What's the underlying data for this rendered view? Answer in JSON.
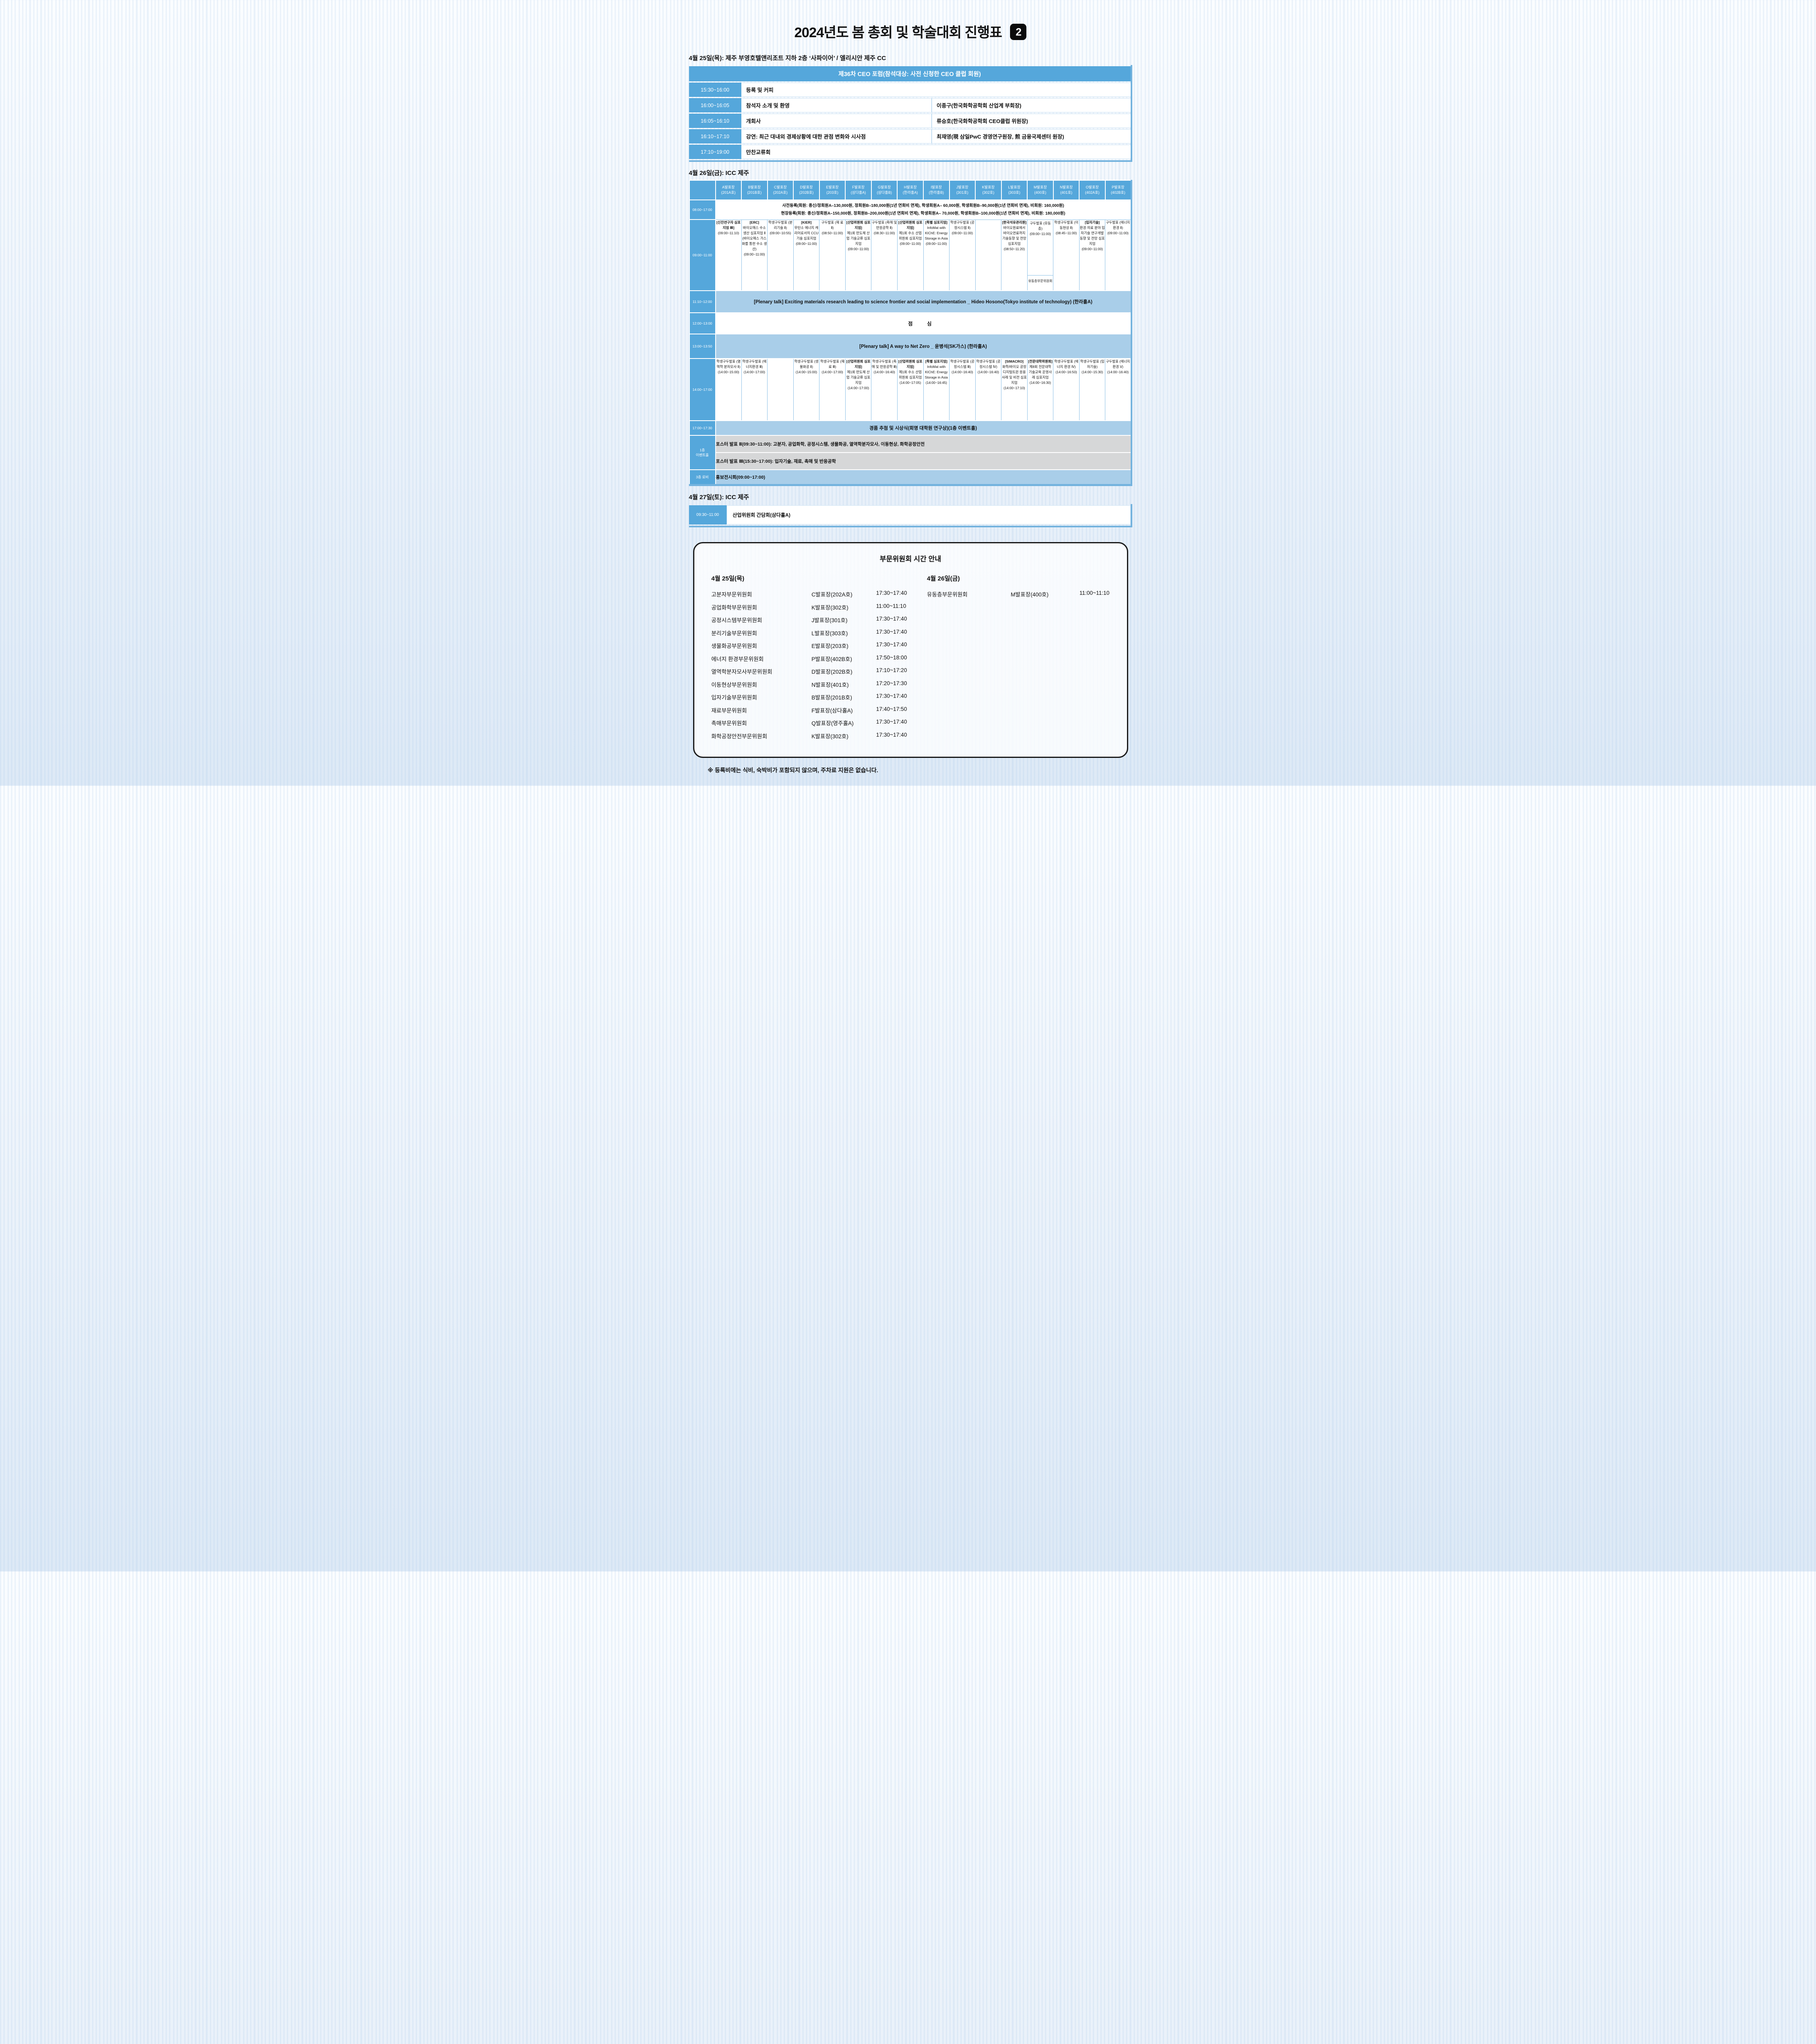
{
  "colors": {
    "accent_blue": "#55a7db",
    "light_blue": "#a9cee9",
    "poster_gray": "#d6d7d8",
    "badge_black": "#0b0b0b"
  },
  "title": {
    "text": "2024년도 봄 총회 및 학술대회 진행표",
    "badge": "2"
  },
  "day1": {
    "heading": "4월 25일(목): 제주 부영호텔앤리조트 지하 2층 ‘사파이어’ / 엘리시안 제주 CC",
    "forum": {
      "header": "제36차 CEO 포럼(참석대상: 사전 신청한 CEO 클럽 회원)",
      "rows": [
        {
          "time": "15:30~16:00",
          "event": "등록 및 커피",
          "speaker": ""
        },
        {
          "time": "16:00~16:05",
          "event": "참석자 소개 및 환영",
          "speaker": "이종구(한국화학공학회 산업계 부회장)"
        },
        {
          "time": "16:05~16:10",
          "event": "개회사",
          "speaker": "류승호(한국화학공학회 CEO클럽 위원장)"
        },
        {
          "time": "16:10~17:10",
          "event": "강연: 최근 대내외 경제상황에 대한 관점 변화와 시사점",
          "speaker": "최재영(現 삼일PwC 경영연구원장, 煎 금융국제센터 원장)"
        },
        {
          "time": "17:10~19:00",
          "event": "만찬교류회",
          "speaker": ""
        }
      ]
    }
  },
  "day2": {
    "heading": "4월 26일(금): ICC 제주",
    "room_letters": [
      "A",
      "B",
      "C",
      "D",
      "E",
      "F",
      "G",
      "H",
      "I",
      "J",
      "K",
      "L",
      "M",
      "N",
      "O",
      "P"
    ],
    "rooms": [
      {
        "name": "A발표장",
        "loc": "(201A호)"
      },
      {
        "name": "B발표장",
        "loc": "(201B호)"
      },
      {
        "name": "C발표장",
        "loc": "(202A호)"
      },
      {
        "name": "D발표장",
        "loc": "(202B호)"
      },
      {
        "name": "E발표장",
        "loc": "(203호)"
      },
      {
        "name": "F발표장",
        "loc": "(삼다홀A)"
      },
      {
        "name": "G발표장",
        "loc": "(삼다홀B)"
      },
      {
        "name": "H발표장",
        "loc": "(한라홀A)"
      },
      {
        "name": "I발표장",
        "loc": "(한라홀B)"
      },
      {
        "name": "J발표장",
        "loc": "(301호)"
      },
      {
        "name": "K발표장",
        "loc": "(302호)"
      },
      {
        "name": "L발표장",
        "loc": "(303호)"
      },
      {
        "name": "M발표장",
        "loc": "(400호)"
      },
      {
        "name": "N발표장",
        "loc": "(401호)"
      },
      {
        "name": "O발표장",
        "loc": "(402A호)"
      },
      {
        "name": "P발표장",
        "loc": "(402B호)"
      }
    ],
    "registration": {
      "time": "08:00~17:00",
      "line1": "사전등록(회원: 종신/정회원A–130,000원, 정회원B–180,000원(1년 연회비 면제), 학생회원A– 60,000원, 학생회원B–90,000원(1년 연회비 면제), 비회원: 160,000원)",
      "line2": "현장등록(회원: 종신/정회원A–150,000원, 정회원B–200,000원(1년 연회비 면제), 학생회원A– 70,000원, 학생회원B–100,000원(1년 연회비 면제), 비회원: 180,000원)"
    },
    "morning": {
      "time": "09:00~11:00",
      "cells": [
        {
          "head": "[신진연구자 심포지엄 Ⅲ]",
          "body": "",
          "time": "(09:00~11:10)"
        },
        {
          "head": "[ERC]",
          "body": "바이오매스 수소 생산 심포지엄 Ⅱ (바이오매스 가스화를 통한 수소 생산)",
          "time": "(09:00~11:00)"
        },
        {
          "head": "",
          "body": "학생구두발표 (분리기술 Ⅱ)",
          "time": "(09:00~10:55)"
        },
        {
          "head": "[KIER]",
          "body": "무탄소 에너지 캐리어로서의 CCU 기술 심포지엄",
          "time": "(09:00~11:00)"
        },
        {
          "head": "",
          "body": "구두발표 (재 료 Ⅱ)",
          "time": "(08:50~11:00)"
        },
        {
          "head": "[산업위원회 심포지엄]",
          "body": "제1회 반도체 산업 기술교류 심포지엄",
          "time": "(09:00~11:00)"
        },
        {
          "head": "",
          "body": "구두발표 (촉매 및 반응공학 Ⅱ)",
          "time": "(08:30~11:00)"
        },
        {
          "head": "[산업위원회 심포지엄]",
          "body": "제1회 수소 산업위원회 심포지엄",
          "time": "(09:00~11:00)"
        },
        {
          "head": "[특별 심포지엄]",
          "body": "InfoMat with KIChE: Energy Storage in Asia",
          "time": "(09:00~11:00)"
        },
        {
          "head": "",
          "body": "학생구두발표 (공정시스템 Ⅱ)",
          "time": "(09:00~11:00)"
        },
        null,
        {
          "head": "[한국석유관리원]",
          "body": "바이오원료에서 바이오연료까지 기술동향 및 전망 심포지엄",
          "time": "(08:50~11:20)"
        },
        {
          "head": "",
          "body": "구두발표 (유동층)",
          "time": "(09:00~11:00)",
          "sub": "유동층부문위원회"
        },
        {
          "head": "",
          "body": "학생구두발표 (이동현상 Ⅱ)",
          "time": "(08:45~11:00)"
        },
        {
          "head": "[입자기술]",
          "body": "환경·의료 분야 입자기술 연구개발 동향 및 전망 심포지엄",
          "time": "(09:00~11:00)"
        },
        {
          "head": "",
          "body": "구두발표 (에너지 환경 Ⅱ)",
          "time": "(09:00~11:00)"
        }
      ]
    },
    "plenary1": {
      "time": "11:10~12:00",
      "text": "[Plenary talk] Exciting materials research leading to science frontier and social implementation _ Hideo Hosono(Tokyo institute of technology) (한라홀A)"
    },
    "lunch": {
      "time": "12:00~13:00",
      "text": "점 심"
    },
    "plenary2": {
      "time": "13:00~13:50",
      "text": "[Plenary talk] A way to Net Zero _ 윤병석(SK가스) (한라홀A)"
    },
    "afternoon": {
      "time": "14:00~17:00",
      "cells": [
        {
          "head": "",
          "body": "학생구두발표 (열역학 분자모사 Ⅱ)",
          "time": "(14:00~15:00)"
        },
        {
          "head": "",
          "body": "학생구두발표 (에너지환경 Ⅲ)",
          "time": "(14:00~17:00)"
        },
        null,
        {
          "head": "",
          "body": "학생구두발표 (생물화공 Ⅱ)",
          "time": "(14:00~15:00)"
        },
        {
          "head": "",
          "body": "학생구두발표 (재 료 Ⅲ)",
          "time": "(14:00~17:00)"
        },
        {
          "head": "[산업위원회 심포지엄]",
          "body": "제1회 반도체 산업 기술교류 심포지엄",
          "time": "(14:00~17:00)"
        },
        {
          "head": "",
          "body": "학생구두발표 (촉매 및 반응공학 Ⅲ)",
          "time": "(14:00~16:40)"
        },
        {
          "head": "[산업위원회 심포지엄]",
          "body": "제1회 수소 산업위원회 심포지엄",
          "time": "(14:00~17:05)"
        },
        {
          "head": "[특별 심포지엄]",
          "body": "InfoMat with KIChE: Energy Storage in Asia",
          "time": "(14:00~16:45)"
        },
        {
          "head": "",
          "body": "학생구두발표 (공정시스템 Ⅲ)",
          "time": "(14:00~16:40)"
        },
        {
          "head": "",
          "body": "학생구두발표 (공정시스템 Ⅳ)",
          "time": "(14:00~16:40)"
        },
        {
          "head": "[SIMACRO]",
          "body": "화학/바이오 공정디지털트윈 응용사례 및 비전 심포지엄",
          "time": "(14:00~17:10)"
        },
        {
          "head": "[전문대학위원회]",
          "body": "제8회 전문대학 기술교육 운영사례 심포지엄",
          "time": "(14:00~16:30)"
        },
        {
          "head": "",
          "body": "학생구두발표 (에너지 환경 Ⅳ)",
          "time": "(14:00~16:50)"
        },
        {
          "head": "",
          "body": "학생구두발표 (입자기술)",
          "time": "(14:00~15:30)"
        },
        {
          "head": "",
          "body": "구두발표 (에너지 환경 Ⅴ)",
          "time": "(14:00~16:40)"
        }
      ]
    },
    "raffle": {
      "time": "17:00~17:30",
      "text": "경품 추첨 및 시상식(회명 대학원 연구상)(1층 이벤트홀)"
    },
    "event_hall": {
      "label_line1": "1층",
      "label_line2": "이벤트홀",
      "rows": [
        "포스터 발표 Ⅱ(09:30~11:00): 고분자, 공업화학, 공정시스템, 생물화공, 열역학분자모사, 이동현상, 화학공정안전",
        "포스터 발표 Ⅲ(15:30~17:00): 입자기술, 재료, 촉매 및 반응공학"
      ]
    },
    "lobby": {
      "label": "3층 로비",
      "text": "홍보전시회(09:00~17:00)"
    }
  },
  "day3": {
    "heading": "4월 27일(토): ICC 제주",
    "rows": [
      {
        "time": "09:30~11:00",
        "event": "산업위원회 간담회(삼다홀A)"
      }
    ]
  },
  "committee_box": {
    "title": "부문위원회 시간 안내",
    "left": {
      "day": "4월 25일(목)",
      "rows": [
        [
          "고분자부문위원회",
          "C발표장(202A호)",
          "17:30~17:40"
        ],
        [
          "공업화학부문위원회",
          "K발표장(302호)",
          "11:00~11:10"
        ],
        [
          "공정시스템부문위원회",
          "J발표장(301호)",
          "17:30~17:40"
        ],
        [
          "분리기술부문위원회",
          "L발표장(303호)",
          "17:30~17:40"
        ],
        [
          "생물화공부문위원회",
          "E발표장(203호)",
          "17:30~17:40"
        ],
        [
          "에너지 환경부문위원회",
          "P발표장(402B호)",
          "17:50~18:00"
        ],
        [
          "열역학분자모사부문위원회",
          "D발표장(202B호)",
          "17:10~17:20"
        ],
        [
          "이동현상부문위원회",
          "N발표장(401호)",
          "17:20~17:30"
        ],
        [
          "입자기술부문위원회",
          "B발표장(201B호)",
          "17:30~17:40"
        ],
        [
          "재료부문위원회",
          "F발표장(삼다홀A)",
          "17:40~17:50"
        ],
        [
          "촉매부문위원회",
          "Q발표장(영주홀A)",
          "17:30~17:40"
        ],
        [
          "화학공정안전부문위원회",
          "K발표장(302호)",
          "17:30~17:40"
        ]
      ]
    },
    "right": {
      "day": "4월 26일(금)",
      "rows": [
        [
          "유동층부문위원회",
          "M발표장(400호)",
          "11:00~11:10"
        ]
      ]
    }
  },
  "footnote": "※ 등록비에는 식비, 숙박비가 포함되지 않으며, 주차료 지원은 없습니다."
}
